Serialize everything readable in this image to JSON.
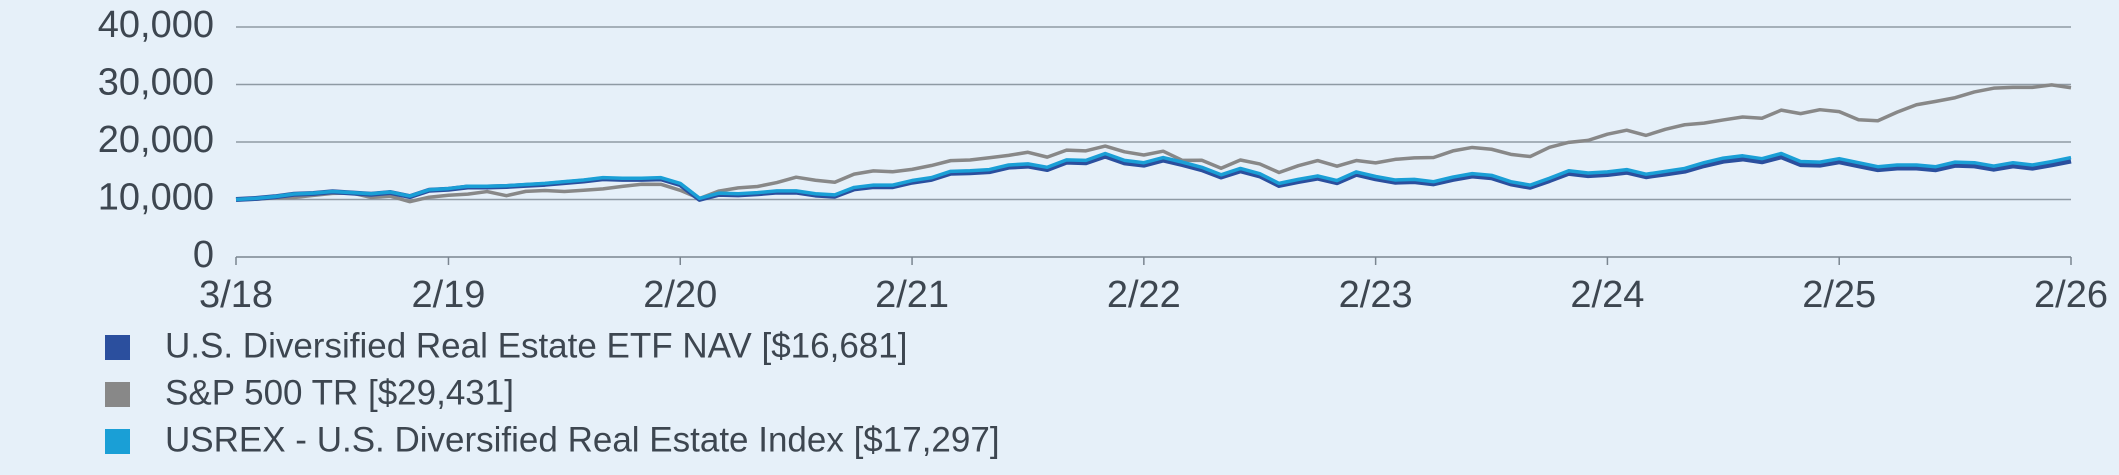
{
  "chart_data": {
    "type": "line",
    "categories": [
      "3/18",
      null,
      null,
      null,
      null,
      null,
      null,
      null,
      null,
      null,
      null,
      "2/19",
      null,
      null,
      null,
      null,
      null,
      null,
      null,
      null,
      null,
      null,
      null,
      "2/20",
      null,
      null,
      null,
      null,
      null,
      null,
      null,
      null,
      null,
      null,
      null,
      "2/21",
      null,
      null,
      null,
      null,
      null,
      null,
      null,
      null,
      null,
      null,
      null,
      "2/22",
      null,
      null,
      null,
      null,
      null,
      null,
      null,
      null,
      null,
      null,
      null,
      "2/23",
      null,
      null,
      null,
      null,
      null,
      null,
      null,
      null,
      null,
      null,
      null,
      "2/24",
      null,
      null,
      null,
      null,
      null,
      null,
      null,
      null,
      null,
      null,
      null,
      "2/25",
      null,
      null,
      null,
      null,
      null,
      null,
      null,
      null,
      null,
      null,
      null,
      "2/26"
    ],
    "series": [
      {
        "name": "U.S. Diversified Real Estate ETF NAV [$16,681]",
        "color": "#2b4f9e",
        "values": [
          10000,
          10180,
          10470,
          10910,
          11050,
          11340,
          11130,
          10920,
          11210,
          10510,
          11600,
          11790,
          12180,
          12170,
          12260,
          12450,
          12640,
          12930,
          13220,
          13610,
          13500,
          13490,
          13580,
          12590,
          10020,
          10900,
          10800,
          10990,
          11280,
          11270,
          10770,
          10570,
          11840,
          12230,
          12220,
          13000,
          13490,
          14560,
          14650,
          14840,
          15620,
          15810,
          15220,
          16490,
          16380,
          17550,
          16370,
          15970,
          16850,
          16070,
          15180,
          13910,
          14980,
          14100,
          12440,
          13120,
          13700,
          12920,
          14380,
          13600,
          13010,
          13110,
          12720,
          13500,
          14080,
          13780,
          12710,
          12120,
          13290,
          14550,
          14160,
          14350,
          14740,
          13960,
          14440,
          14920,
          15890,
          16660,
          17050,
          16560,
          17430,
          16070,
          15970,
          16550,
          15870,
          15190,
          15480,
          15470,
          15180,
          15950,
          15850,
          15270,
          15850,
          15450,
          16040,
          16681
        ]
      },
      {
        "name": "S&P 500 TR [$29,431]",
        "color": "#888888",
        "values": [
          10000,
          10040,
          10280,
          10340,
          10720,
          11070,
          11130,
          10370,
          10580,
          9630,
          10400,
          10730,
          10940,
          11380,
          10660,
          11410,
          11570,
          11390,
          11600,
          11850,
          12280,
          12650,
          12640,
          11600,
          10170,
          11470,
          12020,
          12260,
          12950,
          13880,
          13350,
          13000,
          14420,
          14980,
          14830,
          15240,
          15910,
          16760,
          16870,
          17270,
          17680,
          18210,
          17370,
          18580,
          18460,
          19290,
          18290,
          17740,
          18400,
          16800,
          16830,
          15440,
          16870,
          16180,
          14690,
          15880,
          16770,
          15790,
          16780,
          16370,
          16970,
          17240,
          17310,
          18450,
          19050,
          18740,
          17850,
          17470,
          19070,
          19940,
          20280,
          21360,
          22050,
          21150,
          22200,
          23000,
          23280,
          23840,
          24350,
          24130,
          25540,
          24930,
          25620,
          25290,
          23870,
          23700,
          25200,
          26480,
          27070,
          27700,
          28700,
          29360,
          29500,
          29500,
          29930,
          29431
        ]
      },
      {
        "name": "USREX - U.S. Diversified Real Estate Index [$17,297]",
        "color": "#1a9fd6",
        "values": [
          10000,
          10200,
          10500,
          10950,
          11100,
          11400,
          11200,
          11000,
          11300,
          10600,
          11700,
          11900,
          12300,
          12300,
          12400,
          12600,
          12800,
          13100,
          13400,
          13800,
          13700,
          13700,
          13800,
          12800,
          10200,
          11100,
          11000,
          11200,
          11500,
          11500,
          11000,
          10800,
          12100,
          12500,
          12500,
          13300,
          13800,
          14900,
          15000,
          15200,
          16000,
          16200,
          15600,
          16900,
          16800,
          18000,
          16800,
          16400,
          17300,
          16500,
          15600,
          14300,
          15400,
          14500,
          12800,
          13500,
          14100,
          13300,
          14800,
          14000,
          13400,
          13500,
          13100,
          13900,
          14500,
          14200,
          13100,
          12500,
          13700,
          15000,
          14600,
          14800,
          15200,
          14400,
          14900,
          15400,
          16400,
          17200,
          17600,
          17100,
          18000,
          16600,
          16500,
          17100,
          16400,
          15700,
          16000,
          16000,
          15700,
          16500,
          16400,
          15800,
          16400,
          16000,
          16600,
          17297
        ]
      }
    ],
    "ylim": [
      0,
      40000
    ],
    "yticks": [
      0,
      {
        "value": 10000,
        "label": "10,000"
      },
      {
        "value": 20000,
        "label": "20,000"
      },
      {
        "value": 30000,
        "label": "30,000"
      },
      {
        "value": 40000,
        "label": "40,000"
      }
    ],
    "grid": true
  }
}
